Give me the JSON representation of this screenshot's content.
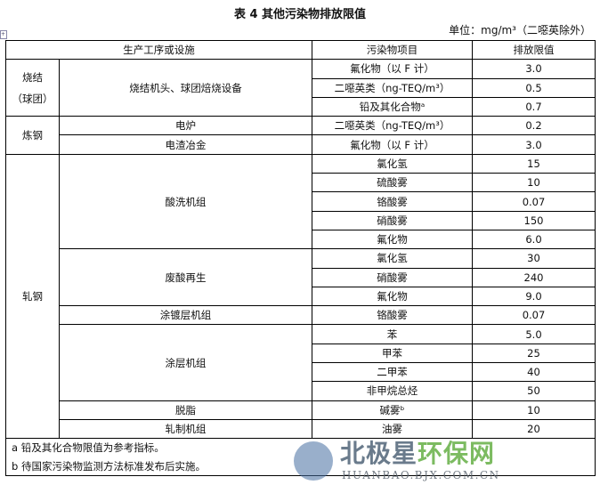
{
  "title": "表 4 其他污染物排放限值",
  "unit": "单位：mg/m³（二噁英除外）",
  "headers": [
    "生产工序或设施",
    "污染物项目",
    "排放限值"
  ],
  "groups": [
    {
      "name": "烧结\n（球团）",
      "subs": [
        {
          "name": "烧结机头、球团焙烧设备",
          "items": [
            [
              "氟化物（以 F 计）",
              "3.0"
            ],
            [
              "二噁英类（ng-TEQ/m³）",
              "0.5"
            ],
            [
              "铅及其化合物ᵃ",
              "0.7"
            ]
          ]
        }
      ]
    },
    {
      "name": "炼钢",
      "subs": [
        {
          "name": "电炉",
          "items": [
            [
              "二噁英类（ng-TEQ/m³）",
              "0.2"
            ]
          ]
        },
        {
          "name": "电渣冶金",
          "items": [
            [
              "氟化物（以 F 计）",
              "3.0"
            ]
          ]
        }
      ]
    },
    {
      "name": "轧钢",
      "subs": [
        {
          "name": "酸洗机组",
          "items": [
            [
              "氯化氢",
              "15"
            ],
            [
              "硫酸雾",
              "10"
            ],
            [
              "铬酸雾",
              "0.07"
            ],
            [
              "硝酸雾",
              "150"
            ],
            [
              "氟化物",
              "6.0"
            ]
          ]
        },
        {
          "name": "废酸再生",
          "items": [
            [
              "氯化氢",
              "30"
            ],
            [
              "硝酸雾",
              "240"
            ],
            [
              "氟化物",
              "9.0"
            ]
          ]
        },
        {
          "name": "涂镀层机组",
          "items": [
            [
              "铬酸雾",
              "0.07"
            ]
          ]
        },
        {
          "name": "涂层机组",
          "items": [
            [
              "苯",
              "5.0"
            ],
            [
              "甲苯",
              "25"
            ],
            [
              "二甲苯",
              "40"
            ],
            [
              "非甲烷总烃",
              "50"
            ]
          ]
        },
        {
          "name": "脱脂",
          "items": [
            [
              "碱雾ᵇ",
              "10"
            ]
          ]
        },
        {
          "name": "轧制机组",
          "items": [
            [
              "油雾",
              "20"
            ]
          ]
        }
      ]
    }
  ],
  "notes": [
    "a 铅及其化合物限值为参考指标。",
    "b 待国家污染物监测方法标准发布后实施。"
  ],
  "watermark": {
    "cn_a": "北极星",
    "cn_b": "环保网",
    "en": "HUANBAO.BJX.COM.CN"
  }
}
